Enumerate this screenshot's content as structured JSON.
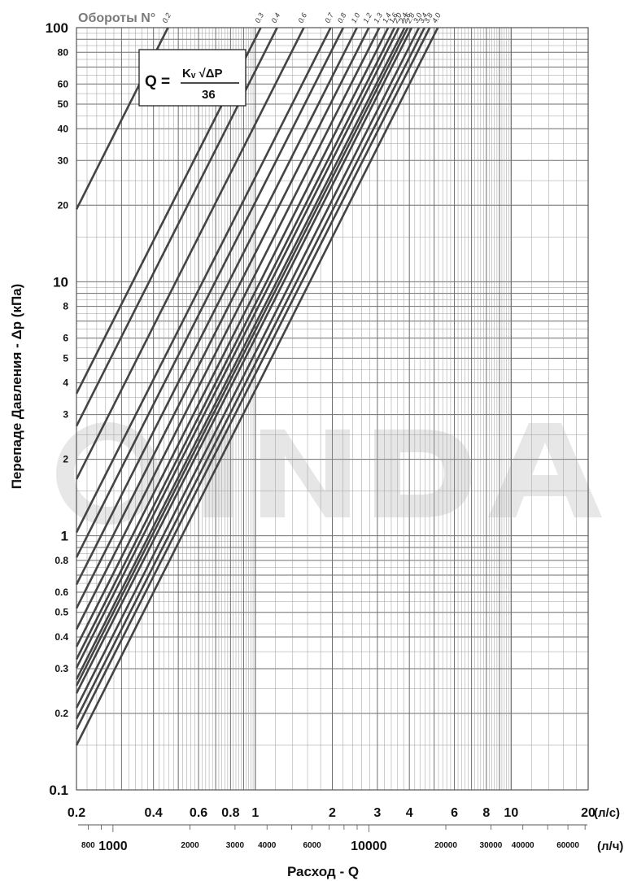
{
  "chart_data": {
    "type": "line",
    "xscale": "log",
    "yscale": "log",
    "grid": true,
    "xlabel": "Расход - Q",
    "ylabel": "Перепаде Давления  - Δp (кПа)",
    "series_title": "Обороты N°",
    "formula": {
      "lhs": "Q =",
      "numerator": "Kᵥ √ΔP",
      "denominator": "36"
    },
    "watermark": "GIACOMINI-like watermark logo",
    "xlim": [
      0.2,
      20
    ],
    "ylim": [
      0.1,
      100
    ],
    "x_unit_top": "(л/с)",
    "x_unit_bottom": "(л/ч)",
    "y_ticks": [
      {
        "value": 0.1,
        "label": "0.1"
      },
      {
        "value": 0.2,
        "label": "0.2"
      },
      {
        "value": 0.3,
        "label": "0.3"
      },
      {
        "value": 0.4,
        "label": "0.4"
      },
      {
        "value": 0.5,
        "label": "0.5"
      },
      {
        "value": 0.6,
        "label": "0.6"
      },
      {
        "value": 0.8,
        "label": "0.8"
      },
      {
        "value": 1,
        "label": "1"
      },
      {
        "value": 2,
        "label": "2"
      },
      {
        "value": 3,
        "label": "3"
      },
      {
        "value": 4,
        "label": "4"
      },
      {
        "value": 5,
        "label": "5"
      },
      {
        "value": 6,
        "label": "6"
      },
      {
        "value": 8,
        "label": "8"
      },
      {
        "value": 10,
        "label": "10"
      },
      {
        "value": 20,
        "label": "20"
      },
      {
        "value": 30,
        "label": "30"
      },
      {
        "value": 40,
        "label": "40"
      },
      {
        "value": 50,
        "label": "50"
      },
      {
        "value": 60,
        "label": "60"
      },
      {
        "value": 80,
        "label": "80"
      },
      {
        "value": 100,
        "label": "100"
      }
    ],
    "x_ticks_top": [
      {
        "value": 0.2,
        "label": "0.2"
      },
      {
        "value": 0.4,
        "label": "0.4"
      },
      {
        "value": 0.6,
        "label": "0.6"
      },
      {
        "value": 0.8,
        "label": "0.8"
      },
      {
        "value": 1,
        "label": "1"
      },
      {
        "value": 2,
        "label": "2"
      },
      {
        "value": 3,
        "label": "3"
      },
      {
        "value": 4,
        "label": "4"
      },
      {
        "value": 6,
        "label": "6"
      },
      {
        "value": 8,
        "label": "8"
      },
      {
        "value": 10,
        "label": "10"
      },
      {
        "value": 20,
        "label": "20"
      }
    ],
    "x_ticks_bottom": [
      {
        "value": 800,
        "label": "800",
        "big": false
      },
      {
        "value": 1000,
        "label": "1000",
        "big": true
      },
      {
        "value": 2000,
        "label": "2000",
        "big": false
      },
      {
        "value": 3000,
        "label": "3000",
        "big": false
      },
      {
        "value": 4000,
        "label": "4000",
        "big": false
      },
      {
        "value": 6000,
        "label": "6000",
        "big": false
      },
      {
        "value": 10000,
        "label": "10000",
        "big": true
      },
      {
        "value": 20000,
        "label": "20000",
        "big": false
      },
      {
        "value": 30000,
        "label": "30000",
        "big": false
      },
      {
        "value": 40000,
        "label": "40000",
        "big": false
      },
      {
        "value": 60000,
        "label": "60000",
        "big": false
      }
    ],
    "series": [
      {
        "name": "0.2",
        "kv": 1.64
      },
      {
        "name": "0.3",
        "kv": 3.78
      },
      {
        "name": "0.4",
        "kv": 4.38
      },
      {
        "name": "0.6",
        "kv": 5.57
      },
      {
        "name": "0.7",
        "kv": 7.09
      },
      {
        "name": "0.8",
        "kv": 7.94
      },
      {
        "name": "1.0",
        "kv": 8.98
      },
      {
        "name": "1.2",
        "kv": 10.0
      },
      {
        "name": "1.3",
        "kv": 11.0
      },
      {
        "name": "1.4",
        "kv": 11.9
      },
      {
        "name": "1.6",
        "kv": 12.6
      },
      {
        "name": "2.0",
        "kv": 13.1
      },
      {
        "name": "2.4",
        "kv": 13.8
      },
      {
        "name": "2.6",
        "kv": 14.2
      },
      {
        "name": "2.8",
        "kv": 14.7
      },
      {
        "name": "3.0",
        "kv": 15.7
      },
      {
        "name": "3.4",
        "kv": 16.5
      },
      {
        "name": "3.8",
        "kv": 17.3
      },
      {
        "name": "4.0",
        "kv": 18.6
      }
    ]
  }
}
